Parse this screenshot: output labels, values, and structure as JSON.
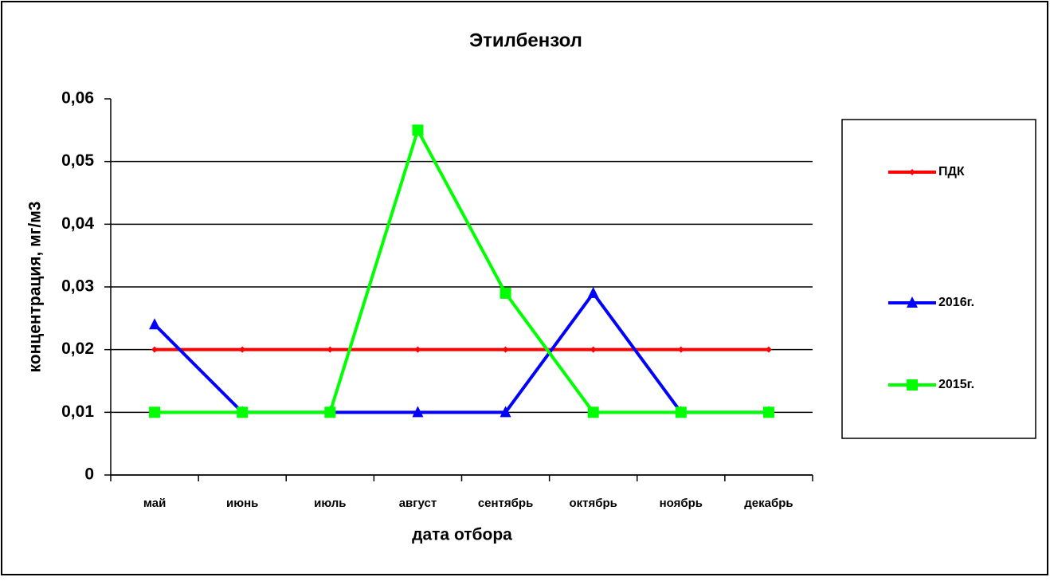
{
  "chart_data": {
    "type": "line",
    "title": "Этилбензол",
    "x_label": "дата отбора",
    "y_label": "концентрация, мг/м3",
    "categories": [
      "май",
      "июнь",
      "июль",
      "август",
      "сентябрь",
      "октябрь",
      "ноябрь",
      "декабрь"
    ],
    "series": [
      {
        "name": "ПДК",
        "color": "#ff0000",
        "marker": "diamond",
        "values": [
          0.02,
          0.02,
          0.02,
          0.02,
          0.02,
          0.02,
          0.02,
          0.02
        ]
      },
      {
        "name": "2016г.",
        "color": "#0000ff",
        "marker": "triangle",
        "values": [
          0.024,
          0.01,
          0.01,
          0.01,
          0.01,
          0.029,
          0.01,
          0.01
        ]
      },
      {
        "name": "2015г.",
        "color": "#00ff00",
        "marker": "square",
        "values": [
          0.01,
          0.01,
          0.01,
          0.055,
          0.029,
          0.01,
          0.01,
          0.01
        ]
      }
    ],
    "ylim": [
      0,
      0.06
    ],
    "yticks": [
      0,
      {
        "value": 0.01,
        "label": "0,01"
      },
      {
        "value": 0.02,
        "label": "0,02"
      },
      {
        "value": 0.03,
        "label": "0,03"
      },
      {
        "value": 0.04,
        "label": "0,04"
      },
      {
        "value": 0.05,
        "label": "0,05"
      },
      {
        "value": 0.06,
        "label": "0,06"
      }
    ],
    "grid": true,
    "legend": "right"
  }
}
